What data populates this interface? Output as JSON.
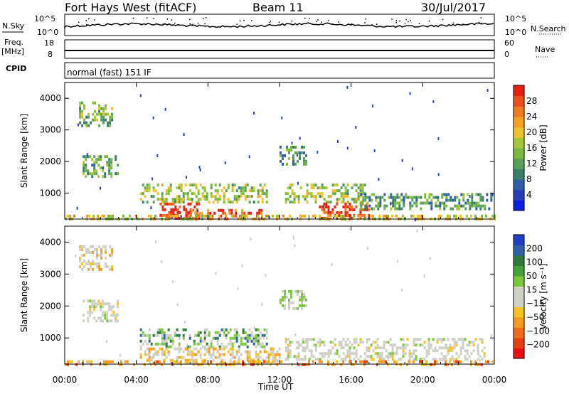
{
  "header": {
    "title": "Fort Hays West (fitACF)",
    "beam": "Beam 11",
    "date": "30/Jul/2017"
  },
  "top_panels": {
    "nsky_label": "N.Sky",
    "nsearch_label": "N.Search",
    "noise_ticks_left": [
      "10^5",
      "10^0"
    ],
    "noise_ticks_right": [
      "10^5",
      "10^0"
    ],
    "freq_label_line1": "Freq.",
    "freq_label_line2": "[MHz]",
    "freq_ticks": [
      "18",
      "8"
    ],
    "nave_label": "Nave",
    "nave_ticks": [
      "60",
      "0"
    ],
    "cpid_label": "CPID",
    "cpid_text": "normal (fast) 151 IF"
  },
  "chart_data": [
    {
      "type": "heatmap",
      "panel": "power",
      "ylabel": "Slant Range [km]",
      "xlabel": "",
      "x_ticks": [
        "00:00",
        "04:00",
        "08:00",
        "12:00",
        "16:00",
        "20:00",
        "00:00"
      ],
      "y_ticks": [
        1000,
        2000,
        3000,
        4000
      ],
      "ylim": [
        180,
        4500
      ],
      "colorbar": {
        "label": "Power [dB]",
        "ticks": [
          4,
          8,
          12,
          16,
          20,
          24,
          28
        ],
        "colors": [
          "#0a1ee6",
          "#2a3db8",
          "#2f5fa8",
          "#3a7f6a",
          "#5aa05a",
          "#7ab93b",
          "#a3c739",
          "#f0c22a",
          "#f5a020",
          "#f07a1e",
          "#ef4f1c",
          "#e81e10"
        ]
      },
      "regions": [
        {
          "x": [
            0.8,
            2.7
          ],
          "y": [
            3100,
            3900
          ],
          "level": 0.45
        },
        {
          "x": [
            1.0,
            3.0
          ],
          "y": [
            1500,
            2200
          ],
          "level": 0.4
        },
        {
          "x": [
            4.2,
            11.3
          ],
          "y": [
            700,
            1300
          ],
          "level": 0.5
        },
        {
          "x": [
            5.3,
            7.5
          ],
          "y": [
            200,
            700
          ],
          "level": 0.95
        },
        {
          "x": [
            7.0,
            11.0
          ],
          "y": [
            200,
            500
          ],
          "level": 0.85
        },
        {
          "x": [
            12.3,
            16.8
          ],
          "y": [
            700,
            1300
          ],
          "level": 0.5
        },
        {
          "x": [
            14.2,
            17.0
          ],
          "y": [
            200,
            700
          ],
          "level": 0.95
        },
        {
          "x": [
            16.5,
            23.8
          ],
          "y": [
            500,
            1000
          ],
          "level": 0.35
        },
        {
          "x": [
            12.0,
            13.5
          ],
          "y": [
            1900,
            2500
          ],
          "level": 0.35
        },
        {
          "x": [
            0.0,
            24.0
          ],
          "y": [
            180,
            320
          ],
          "level": 0.6
        }
      ]
    },
    {
      "type": "heatmap",
      "panel": "velocity",
      "ylabel": "Slant Range [km]",
      "xlabel": "Time UT",
      "x_ticks": [
        "00:00",
        "04:00",
        "08:00",
        "12:00",
        "16:00",
        "20:00",
        "00:00"
      ],
      "y_ticks": [
        1000,
        2000,
        3000,
        4000
      ],
      "ylim": [
        180,
        4500
      ],
      "colorbar": {
        "label": "Velocity [m s⁻¹]",
        "ticks": [
          200,
          100,
          50,
          15,
          -15,
          -50,
          -100,
          -200
        ],
        "colors": [
          "#1f3fc4",
          "#3060a8",
          "#2e7a3c",
          "#44a43a",
          "#7ac93b",
          "#cfcfc6",
          "#cfcfc6",
          "#f5c21f",
          "#f59a1c",
          "#f06c18",
          "#ea3d14",
          "#e81010"
        ]
      },
      "regions": [
        {
          "x": [
            0.8,
            2.7
          ],
          "y": [
            3100,
            3900
          ],
          "class": "gray-orange"
        },
        {
          "x": [
            1.0,
            3.0
          ],
          "y": [
            1500,
            2200
          ],
          "class": "gray"
        },
        {
          "x": [
            4.2,
            11.3
          ],
          "y": [
            700,
            1300
          ],
          "class": "green-blue"
        },
        {
          "x": [
            4.2,
            12.0
          ],
          "y": [
            200,
            700
          ],
          "class": "gray-orange"
        },
        {
          "x": [
            12.3,
            23.5
          ],
          "y": [
            300,
            1000
          ],
          "class": "gray"
        },
        {
          "x": [
            12.0,
            13.5
          ],
          "y": [
            1900,
            2500
          ],
          "class": "green"
        },
        {
          "x": [
            0.0,
            24.0
          ],
          "y": [
            180,
            300
          ],
          "class": "orange"
        }
      ]
    }
  ]
}
